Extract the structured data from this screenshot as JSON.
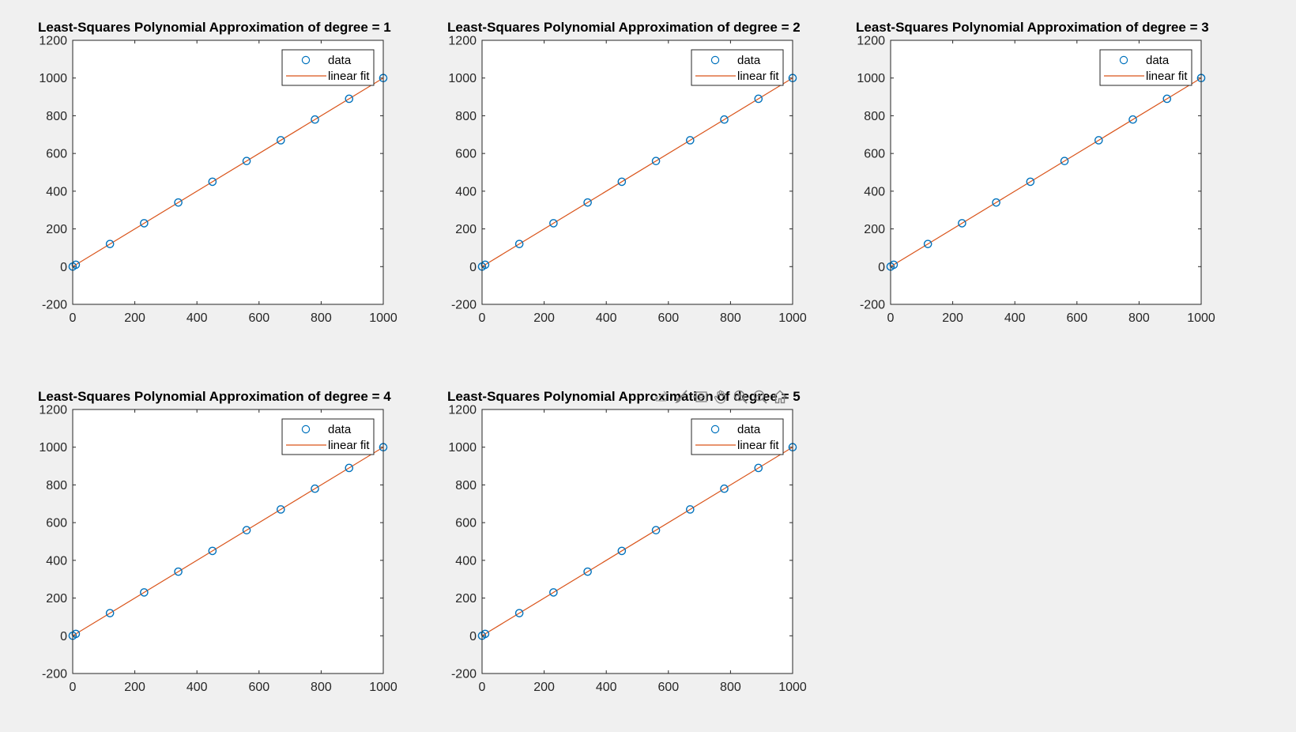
{
  "figure": {
    "background": "#f0f0f0",
    "axes_background": "#ffffff",
    "data_color": "#0072bd",
    "fit_color": "#d95319"
  },
  "chart_data": [
    {
      "type": "line",
      "title": "Least-Squares Polynomial Approximation of degree = 1",
      "xlabel": "",
      "ylabel": "",
      "xlim": [
        0,
        1000
      ],
      "ylim": [
        -200,
        1200
      ],
      "xticks": [
        "0",
        "200",
        "400",
        "600",
        "800",
        "1000"
      ],
      "yticks": [
        "-200",
        "0",
        "200",
        "400",
        "600",
        "800",
        "1000",
        "1200"
      ],
      "grid": false,
      "legend_position": "top-right",
      "series": [
        {
          "name": "data",
          "style": "markers-circle",
          "x": [
            0,
            10,
            120,
            230,
            340,
            450,
            560,
            670,
            780,
            890,
            1000
          ],
          "y": [
            0,
            10,
            120,
            230,
            340,
            450,
            560,
            670,
            780,
            890,
            1000
          ]
        },
        {
          "name": "linear fit",
          "style": "line",
          "x": [
            0,
            1000
          ],
          "y": [
            0,
            1000
          ]
        }
      ]
    },
    {
      "type": "line",
      "title": "Least-Squares Polynomial Approximation of degree = 2",
      "xlabel": "",
      "ylabel": "",
      "xlim": [
        0,
        1000
      ],
      "ylim": [
        -200,
        1200
      ],
      "xticks": [
        "0",
        "200",
        "400",
        "600",
        "800",
        "1000"
      ],
      "yticks": [
        "-200",
        "0",
        "200",
        "400",
        "600",
        "800",
        "1000",
        "1200"
      ],
      "grid": false,
      "legend_position": "top-right",
      "series": [
        {
          "name": "data",
          "style": "markers-circle",
          "x": [
            0,
            10,
            120,
            230,
            340,
            450,
            560,
            670,
            780,
            890,
            1000
          ],
          "y": [
            0,
            10,
            120,
            230,
            340,
            450,
            560,
            670,
            780,
            890,
            1000
          ]
        },
        {
          "name": "linear fit",
          "style": "line",
          "x": [
            0,
            1000
          ],
          "y": [
            0,
            1000
          ]
        }
      ]
    },
    {
      "type": "line",
      "title": "Least-Squares Polynomial Approximation of degree = 3",
      "xlabel": "",
      "ylabel": "",
      "xlim": [
        0,
        1000
      ],
      "ylim": [
        -200,
        1200
      ],
      "xticks": [
        "0",
        "200",
        "400",
        "600",
        "800",
        "1000"
      ],
      "yticks": [
        "-200",
        "0",
        "200",
        "400",
        "600",
        "800",
        "1000",
        "1200"
      ],
      "grid": false,
      "legend_position": "top-right",
      "series": [
        {
          "name": "data",
          "style": "markers-circle",
          "x": [
            0,
            10,
            120,
            230,
            340,
            450,
            560,
            670,
            780,
            890,
            1000
          ],
          "y": [
            0,
            10,
            120,
            230,
            340,
            450,
            560,
            670,
            780,
            890,
            1000
          ]
        },
        {
          "name": "linear fit",
          "style": "line",
          "x": [
            0,
            1000
          ],
          "y": [
            0,
            1000
          ]
        }
      ]
    },
    {
      "type": "line",
      "title": "Least-Squares Polynomial Approximation of degree = 4",
      "xlabel": "",
      "ylabel": "",
      "xlim": [
        0,
        1000
      ],
      "ylim": [
        -200,
        1200
      ],
      "xticks": [
        "0",
        "200",
        "400",
        "600",
        "800",
        "1000"
      ],
      "yticks": [
        "-200",
        "0",
        "200",
        "400",
        "600",
        "800",
        "1000",
        "1200"
      ],
      "grid": false,
      "legend_position": "top-right",
      "series": [
        {
          "name": "data",
          "style": "markers-circle",
          "x": [
            0,
            10,
            120,
            230,
            340,
            450,
            560,
            670,
            780,
            890,
            1000
          ],
          "y": [
            0,
            10,
            120,
            230,
            340,
            450,
            560,
            670,
            780,
            890,
            1000
          ]
        },
        {
          "name": "linear fit",
          "style": "line",
          "x": [
            0,
            1000
          ],
          "y": [
            0,
            1000
          ]
        }
      ]
    },
    {
      "type": "line",
      "title": "Least-Squares Polynomial Approximation of degree = 5",
      "xlabel": "",
      "ylabel": "",
      "xlim": [
        0,
        1000
      ],
      "ylim": [
        -200,
        1200
      ],
      "xticks": [
        "0",
        "200",
        "400",
        "600",
        "800",
        "1000"
      ],
      "yticks": [
        "-200",
        "0",
        "200",
        "400",
        "600",
        "800",
        "1000",
        "1200"
      ],
      "grid": false,
      "legend_position": "top-right",
      "series": [
        {
          "name": "data",
          "style": "markers-circle",
          "x": [
            0,
            10,
            120,
            230,
            340,
            450,
            560,
            670,
            780,
            890,
            1000
          ],
          "y": [
            0,
            10,
            120,
            230,
            340,
            450,
            560,
            670,
            780,
            890,
            1000
          ]
        },
        {
          "name": "linear fit",
          "style": "line",
          "x": [
            0,
            1000
          ],
          "y": [
            0,
            1000
          ]
        }
      ]
    }
  ],
  "axes_toolbar": {
    "tools": [
      "export-icon",
      "brush-icon",
      "data-tips-icon",
      "pan-icon",
      "zoom-in-icon",
      "zoom-out-icon",
      "home-icon"
    ]
  }
}
